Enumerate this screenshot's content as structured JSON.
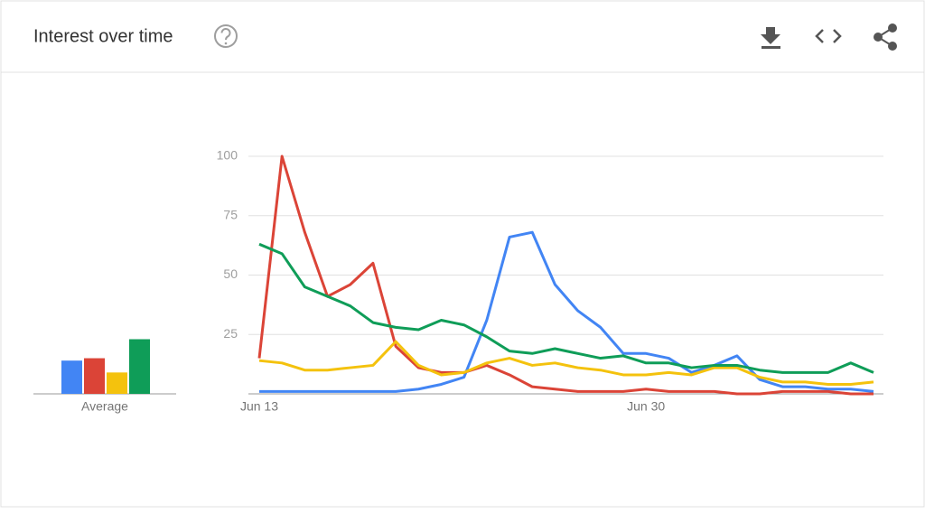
{
  "header": {
    "title": "Interest over time"
  },
  "chart_data": {
    "type": "line",
    "categories": [
      "Jun 13",
      null,
      null,
      null,
      null,
      null,
      null,
      null,
      null,
      null,
      null,
      null,
      null,
      null,
      null,
      null,
      null,
      "Jun 30",
      null,
      null,
      null,
      null,
      null,
      null,
      null,
      null,
      null,
      null
    ],
    "ylim": [
      0,
      100
    ],
    "yticks": [
      25,
      50,
      75,
      100
    ],
    "grid": true,
    "average_label": "Average",
    "series": [
      {
        "color": "#4285f4",
        "average": 14,
        "values": [
          1,
          1,
          1,
          1,
          1,
          1,
          1,
          2,
          4,
          7,
          31,
          66,
          68,
          46,
          35,
          28,
          17,
          17,
          15,
          9,
          12,
          16,
          6,
          3,
          3,
          2,
          2,
          1
        ]
      },
      {
        "color": "#db4437",
        "average": 15,
        "values": [
          15,
          100,
          68,
          41,
          46,
          55,
          20,
          11,
          9,
          9,
          12,
          8,
          3,
          2,
          1,
          1,
          1,
          2,
          1,
          1,
          1,
          0,
          0,
          1,
          1,
          1,
          0,
          0
        ]
      },
      {
        "color": "#f4c20d",
        "average": 9,
        "values": [
          14,
          13,
          10,
          10,
          11,
          12,
          22,
          12,
          8,
          9,
          13,
          15,
          12,
          13,
          11,
          10,
          8,
          8,
          9,
          8,
          11,
          11,
          7,
          5,
          5,
          4,
          4,
          5
        ]
      },
      {
        "color": "#0f9d58",
        "average": 23,
        "values": [
          63,
          59,
          45,
          41,
          37,
          30,
          28,
          27,
          31,
          29,
          24,
          18,
          17,
          19,
          17,
          15,
          16,
          13,
          13,
          11,
          12,
          12,
          10,
          9,
          9,
          9,
          13,
          9
        ]
      }
    ]
  }
}
